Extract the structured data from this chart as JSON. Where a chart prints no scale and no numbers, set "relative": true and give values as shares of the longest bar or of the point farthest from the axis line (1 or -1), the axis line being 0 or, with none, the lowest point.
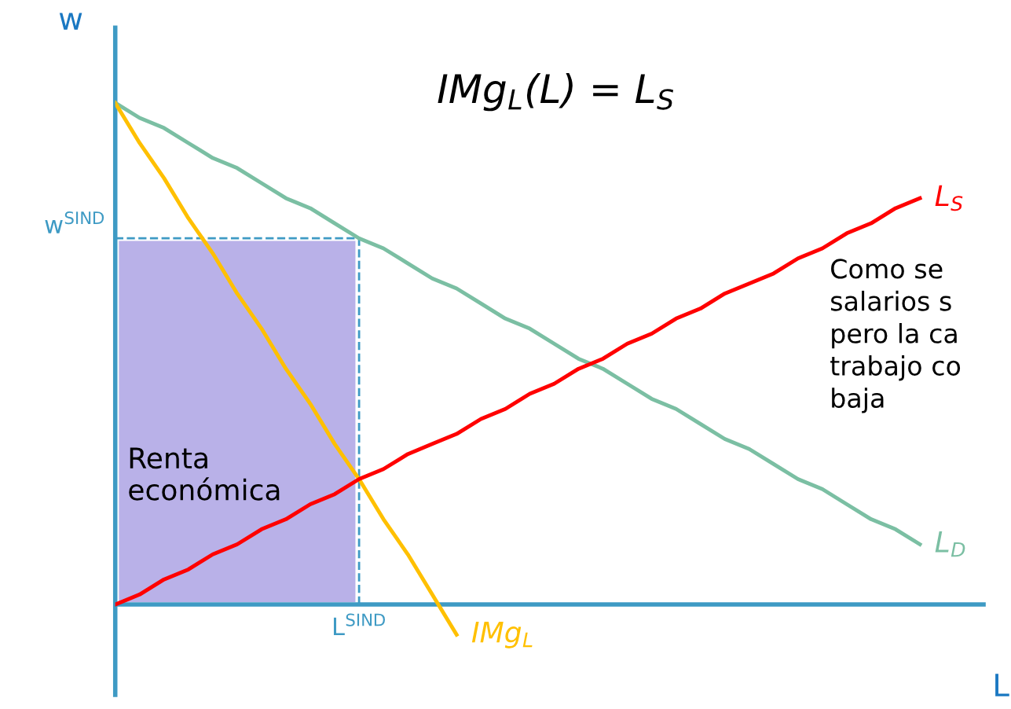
{
  "chart_data": {
    "type": "line",
    "relative": true,
    "title": "IMg$_{L}$(L) = L$_{S}$",
    "xlabel": "L",
    "ylabel": "w",
    "categories": [
      null,
      null,
      null,
      null,
      null,
      null,
      null,
      null,
      null,
      null,
      null,
      null,
      null,
      null,
      null,
      null,
      null,
      null,
      null,
      null,
      null,
      null,
      null,
      null,
      null,
      null,
      null,
      null,
      null,
      null,
      null,
      null,
      null,
      null,
      null
    ],
    "series": [
      {
        "name": "L$_{D}$",
        "color": "#7bbfa3",
        "values": [
          1.0,
          0.97,
          0.95,
          0.92,
          0.89,
          0.87,
          0.84,
          0.81,
          0.79,
          0.76,
          0.73,
          0.71,
          0.68,
          0.65,
          0.63,
          0.6,
          0.57,
          0.55,
          0.52,
          0.49,
          0.47,
          0.44,
          0.41,
          0.39,
          0.36,
          0.33,
          0.31,
          0.28,
          0.25,
          0.23,
          0.2,
          0.17,
          0.15,
          0.12,
          null
        ]
      },
      {
        "name": "IMg$_{L}$",
        "color": "#ffc000",
        "values": [
          1.0,
          0.92,
          0.85,
          0.77,
          0.7,
          0.62,
          0.55,
          0.47,
          0.4,
          0.32,
          0.25,
          0.17,
          0.1,
          0.02,
          -0.06,
          null,
          null,
          null,
          null,
          null,
          null,
          null,
          null,
          null,
          null,
          null,
          null,
          null,
          null,
          null,
          null,
          null,
          null,
          null,
          null
        ]
      },
      {
        "name": "L$_{S}$",
        "color": "#ff0000",
        "values": [
          0.0,
          0.02,
          0.05,
          0.07,
          0.1,
          0.12,
          0.15,
          0.17,
          0.2,
          0.22,
          0.25,
          0.27,
          0.3,
          0.32,
          0.34,
          0.37,
          0.39,
          0.42,
          0.44,
          0.47,
          0.49,
          0.52,
          0.54,
          0.57,
          0.59,
          0.62,
          0.64,
          0.66,
          0.69,
          0.71,
          0.74,
          0.76,
          0.79,
          0.81,
          null
        ]
      }
    ],
    "ref_lines": [
      {
        "axis": "y",
        "value": 0.73,
        "label": "w$^{SIND}$",
        "color": "#3e9ac4",
        "line_style": "dashed"
      },
      {
        "axis": "y",
        "value": 0,
        "color": "#3e9ac4",
        "line_style": "solid"
      }
    ],
    "annotations": [
      "Como se\nsalarios s\npero la ca\ntrabajo co\nbaja",
      "L$^{SIND}$",
      "Renta\neconómica"
    ],
    "marker": "none",
    "line_style": "solid"
  }
}
